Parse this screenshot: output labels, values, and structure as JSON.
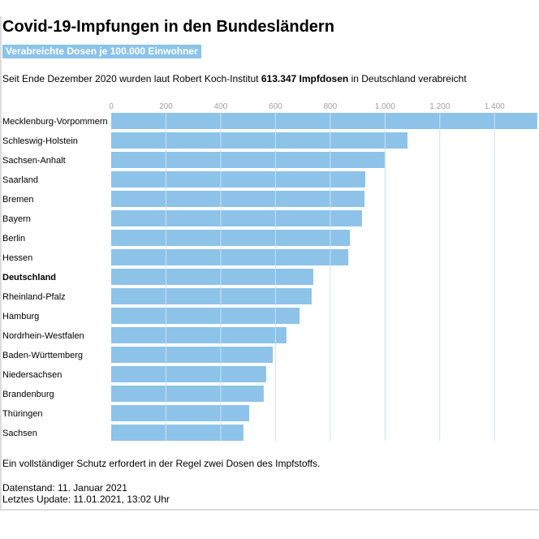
{
  "header": {
    "title": "Covid-19-Impfungen in den Bundesländern",
    "badge": "Verabreichte Dosen je 100.000 Einwohner",
    "intro_before": "Seit Ende Dezember 2020 wurden laut Robert Koch-Institut ",
    "intro_bold": "613.347 Impfdosen",
    "intro_after": " in Deutschland verabreicht"
  },
  "footer": {
    "note": "Ein vollständiger Schutz erfordert in der Regel zwei Dosen des Impfstoffs.",
    "datenstand": "Datenstand: 11. Januar 2021",
    "update": "Letztes Update: 11.01.2021, 13:02 Uhr"
  },
  "colors": {
    "bar": "#8dc3e8",
    "badge": "#8dc3e8",
    "gridline": "#c9e2f4",
    "tick_label": "#a0a0a0"
  },
  "chart_data": {
    "type": "bar",
    "orientation": "horizontal",
    "title": "Covid-19-Impfungen in den Bundesländern",
    "subtitle": "Verabreichte Dosen je 100.000 Einwohner",
    "xlabel": "",
    "ylabel": "",
    "xlim": [
      0,
      1556
    ],
    "ticks": [
      0,
      200,
      400,
      600,
      800,
      1000,
      1200,
      1400
    ],
    "tick_labels": [
      "0",
      "200",
      "400",
      "600",
      "800",
      "1.000",
      "1.200",
      "1.400"
    ],
    "axis_position": "top",
    "grid": true,
    "legend": "none",
    "highlighted_category": "Deutschland",
    "categories": [
      "Mecklenburg-Vorpommern",
      "Schleswig-Holstein",
      "Sachsen-Anhalt",
      "Saarland",
      "Bremen",
      "Bayern",
      "Berlin",
      "Hessen",
      "Deutschland",
      "Rheinland-Pfalz",
      "Hamburg",
      "Nordrhein-Westfalen",
      "Baden-Württemberg",
      "Niedersachsen",
      "Brandenburg",
      "Thüringen",
      "Sachsen"
    ],
    "values": [
      1556,
      1082,
      1000,
      928,
      925,
      916,
      872,
      866,
      738,
      732,
      688,
      640,
      590,
      566,
      557,
      504,
      483
    ]
  }
}
